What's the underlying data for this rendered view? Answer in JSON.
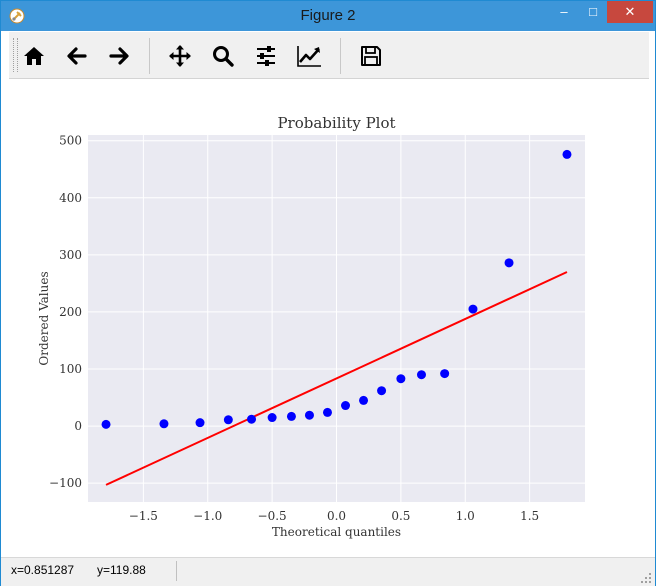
{
  "window": {
    "title": "Figure 2",
    "minimize": "–",
    "maximize": "□",
    "close": "✕"
  },
  "toolbar": {
    "buttons": [
      {
        "name": "home",
        "icon": "home-icon"
      },
      {
        "name": "back",
        "icon": "arrow-left-icon"
      },
      {
        "name": "forward",
        "icon": "arrow-right-icon"
      },
      {
        "name": "pan",
        "icon": "move-icon"
      },
      {
        "name": "zoom",
        "icon": "magnifier-icon"
      },
      {
        "name": "configure-subplots",
        "icon": "sliders-icon"
      },
      {
        "name": "edit-axis",
        "icon": "line-chart-icon"
      },
      {
        "name": "save",
        "icon": "floppy-disk-icon"
      }
    ]
  },
  "status": {
    "x": "x=0.851287",
    "y": "y=119.88"
  },
  "colors": {
    "titlebar": "#3d96d9",
    "close": "#c7483e",
    "plot_bg": "#eaeaf2",
    "points": "#0000ff",
    "fit_line": "#ff0000"
  },
  "chart_data": {
    "type": "scatter",
    "title": "Probability Plot",
    "xlabel": "Theoretical quantiles",
    "ylabel": "Ordered Values",
    "xlim": [
      -1.93,
      1.93
    ],
    "ylim": [
      -133,
      510
    ],
    "xticks": [
      -1.5,
      -1.0,
      -0.5,
      0.0,
      0.5,
      1.0,
      1.5
    ],
    "xtick_labels": [
      "−1.5",
      "−1.0",
      "−0.5",
      "0.0",
      "0.5",
      "1.0",
      "1.5"
    ],
    "yticks": [
      -100,
      0,
      100,
      200,
      300,
      400,
      500
    ],
    "ytick_labels": [
      "−100",
      "0",
      "100",
      "200",
      "300",
      "400",
      "500"
    ],
    "grid": true,
    "points": {
      "x": [
        -1.79,
        -1.34,
        -1.06,
        -0.84,
        -0.66,
        -0.5,
        -0.35,
        -0.21,
        -0.07,
        0.07,
        0.21,
        0.35,
        0.5,
        0.66,
        0.84,
        1.06,
        1.34,
        1.79
      ],
      "y": [
        3,
        4,
        6,
        11,
        12,
        15,
        17,
        19,
        24,
        36,
        45,
        62,
        83,
        90,
        92,
        205,
        286,
        476
      ]
    },
    "fit_line": {
      "x": [
        -1.79,
        1.79
      ],
      "y": [
        -103,
        270
      ]
    }
  }
}
